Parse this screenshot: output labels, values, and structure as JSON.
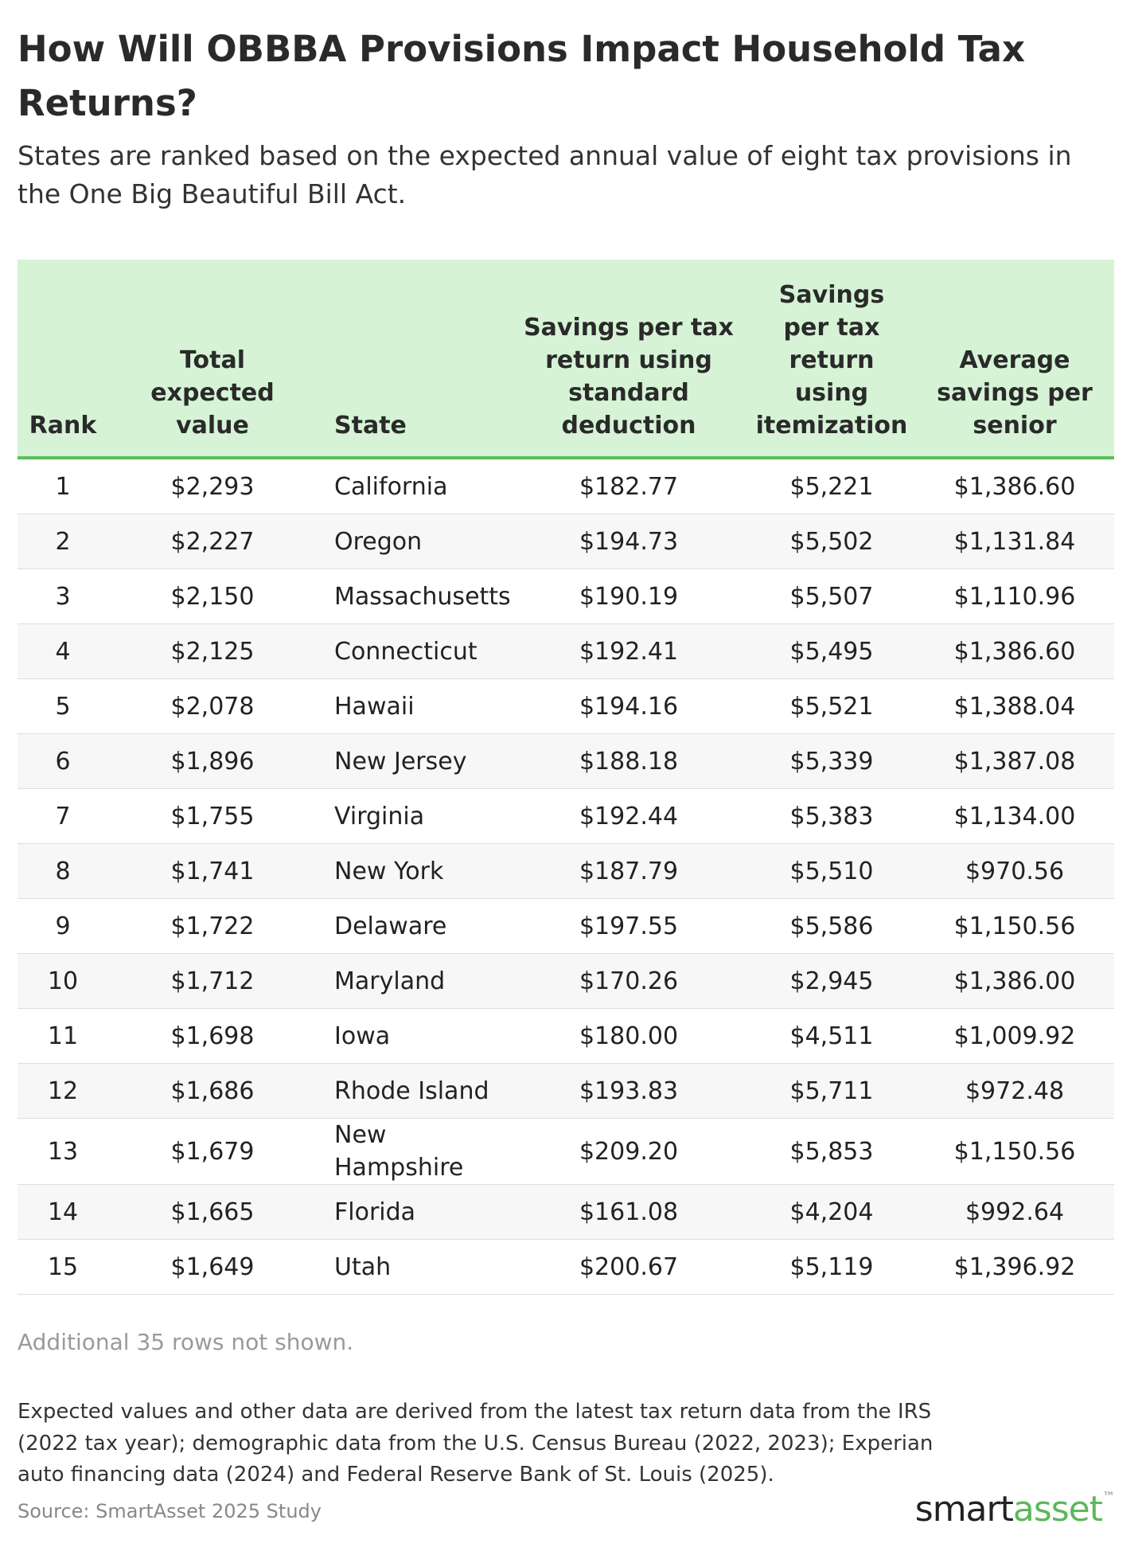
{
  "header": {
    "title": "How Will OBBBA Provisions Impact Household Tax Returns?",
    "subtitle": "States are ranked based on the expected annual value of eight tax provisions in the One Big Beautiful Bill Act."
  },
  "table": {
    "columns": [
      "Rank",
      "Total expected value",
      "State",
      "Savings per tax return using standard deduction",
      "Savings per tax return using itemization",
      "Average savings per senior"
    ],
    "rows": [
      [
        "1",
        "$2,293",
        "California",
        "$182.77",
        "$5,221",
        "$1,386.60"
      ],
      [
        "2",
        "$2,227",
        "Oregon",
        "$194.73",
        "$5,502",
        "$1,131.84"
      ],
      [
        "3",
        "$2,150",
        "Massachusetts",
        "$190.19",
        "$5,507",
        "$1,110.96"
      ],
      [
        "4",
        "$2,125",
        "Connecticut",
        "$192.41",
        "$5,495",
        "$1,386.60"
      ],
      [
        "5",
        "$2,078",
        "Hawaii",
        "$194.16",
        "$5,521",
        "$1,388.04"
      ],
      [
        "6",
        "$1,896",
        "New Jersey",
        "$188.18",
        "$5,339",
        "$1,387.08"
      ],
      [
        "7",
        "$1,755",
        "Virginia",
        "$192.44",
        "$5,383",
        "$1,134.00"
      ],
      [
        "8",
        "$1,741",
        "New York",
        "$187.79",
        "$5,510",
        "$970.56"
      ],
      [
        "9",
        "$1,722",
        "Delaware",
        "$197.55",
        "$5,586",
        "$1,150.56"
      ],
      [
        "10",
        "$1,712",
        "Maryland",
        "$170.26",
        "$2,945",
        "$1,386.00"
      ],
      [
        "11",
        "$1,698",
        "Iowa",
        "$180.00",
        "$4,511",
        "$1,009.92"
      ],
      [
        "12",
        "$1,686",
        "Rhode Island",
        "$193.83",
        "$5,711",
        "$972.48"
      ],
      [
        "13",
        "$1,679",
        "New Hampshire",
        "$209.20",
        "$5,853",
        "$1,150.56"
      ],
      [
        "14",
        "$1,665",
        "Florida",
        "$161.08",
        "$4,204",
        "$992.64"
      ],
      [
        "15",
        "$1,649",
        "Utah",
        "$200.67",
        "$5,119",
        "$1,396.92"
      ]
    ],
    "more_note": "Additional 35 rows not shown."
  },
  "footer": {
    "notes": "Expected values and other data are derived from the latest tax return data from the IRS (2022 tax year); demographic data from the U.S. Census Bureau (2022, 2023); Experian auto financing data (2024) and Federal Reserve Bank of St. Louis (2025).",
    "source": "Source: SmartAsset 2025 Study",
    "logo_smart": "smart",
    "logo_asset": "asset",
    "logo_tm": "™"
  }
}
